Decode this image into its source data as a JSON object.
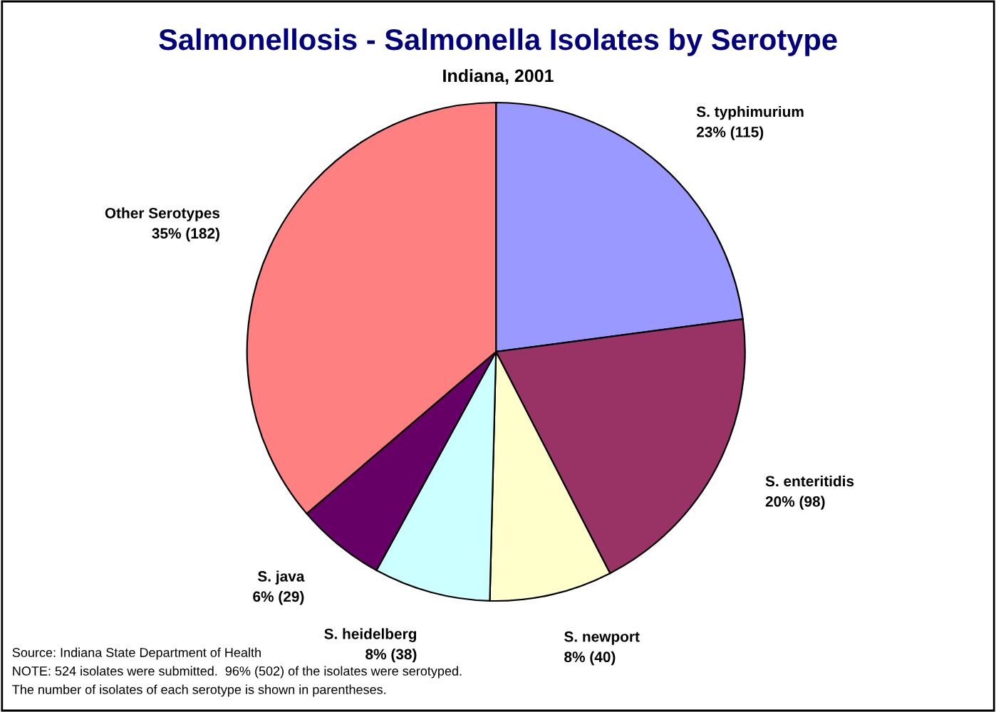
{
  "chart_data": {
    "type": "pie",
    "title": "Salmonellosis - Salmonella Isolates by Serotype",
    "subtitle": "Indiana, 2001",
    "categories": [
      "S. typhimurium",
      "S. enteritidis",
      "S. newport",
      "S. heidelberg",
      "S. java",
      "Other Serotypes"
    ],
    "values": [
      115,
      98,
      40,
      38,
      29,
      182
    ],
    "value_labels": [
      "23% (115)",
      "20% (98)",
      "8% (40)",
      "8% (38)",
      "6% (29)",
      "35% (182)"
    ],
    "colors": [
      "#9999ff",
      "#993366",
      "#ffffcc",
      "#ccffff",
      "#660066",
      "#ff8080"
    ],
    "annotations": [
      "Source: Indiana State Department of Health",
      "NOTE: 524 isolates were submitted.  96% (502) of the isolates were serotyped.",
      "The number of isolates of each serotype is shown in parentheses."
    ]
  }
}
